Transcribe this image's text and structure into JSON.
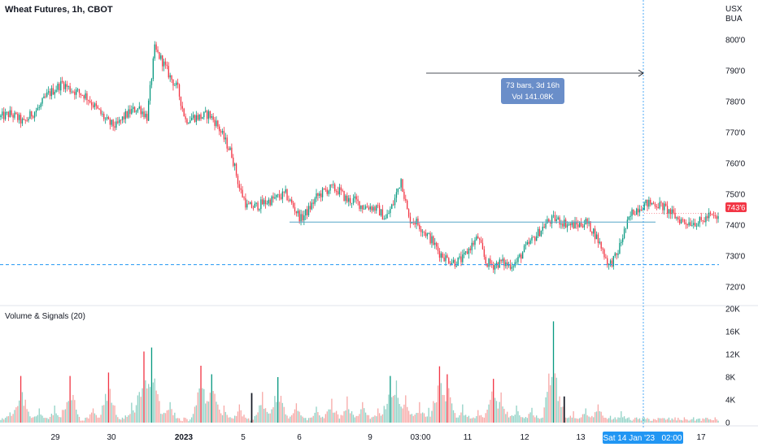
{
  "header": {
    "title": "Wheat Futures, 1h, CBOT"
  },
  "currency": {
    "line1": "USX",
    "line2": "BUA"
  },
  "colors": {
    "up": "#089981",
    "down": "#f23645",
    "up_light": "#92d2c6",
    "down_light": "#f7a9a7",
    "accent": "#2962ff",
    "hline": "#56a6c8",
    "price_tag": "#f23645",
    "date_tag": "#2196f3",
    "measure_box": "#6a8ec9"
  },
  "price_pane": {
    "ylim": [
      715,
      805
    ],
    "ticks": [
      "800'0",
      "790'0",
      "780'0",
      "770'0",
      "760'0",
      "750'0",
      "740'0",
      "730'0",
      "720'0"
    ],
    "tick_values": [
      800,
      790,
      780,
      770,
      760,
      750,
      740,
      730,
      720
    ],
    "current_price_label": "743'6",
    "current_price": 743.75,
    "horizontal_line": 741.0,
    "dashed_line": 727.2
  },
  "measure": {
    "line1": "73 bars, 3d 16h",
    "line2": "Vol 141.08K"
  },
  "volume_pane": {
    "title": "Volume & Signals (20)",
    "ylim": [
      0,
      20000
    ],
    "ticks": [
      "20K",
      "16K",
      "12K",
      "8K",
      "4K",
      "0"
    ],
    "tick_values": [
      20000,
      16000,
      12000,
      8000,
      4000,
      0
    ]
  },
  "x_axis": {
    "labels": [
      "29",
      "30",
      "2023",
      "5",
      "6",
      "9",
      "03:00",
      "11",
      "12",
      "13",
      "17"
    ],
    "crosshair_label": "Sat 14 Jan '23   02:00"
  },
  "chart_data": {
    "type": "candlestick",
    "series_name": "Wheat Futures, 1h, CBOT",
    "close_path": [
      [
        0,
        775
      ],
      [
        6,
        776
      ],
      [
        10,
        775
      ],
      [
        15,
        773
      ],
      [
        20,
        776
      ],
      [
        25,
        778
      ],
      [
        30,
        782
      ],
      [
        35,
        784
      ],
      [
        40,
        786
      ],
      [
        45,
        784
      ],
      [
        50,
        783
      ],
      [
        55,
        782
      ],
      [
        60,
        779
      ],
      [
        65,
        776
      ],
      [
        70,
        773
      ],
      [
        75,
        772
      ],
      [
        80,
        775
      ],
      [
        85,
        777
      ],
      [
        90,
        778
      ],
      [
        95,
        775
      ],
      [
        100,
        797
      ],
      [
        105,
        793
      ],
      [
        110,
        788
      ],
      [
        115,
        784
      ],
      [
        120,
        774
      ],
      [
        125,
        775
      ],
      [
        130,
        775
      ],
      [
        135,
        776
      ],
      [
        140,
        773
      ],
      [
        145,
        768
      ],
      [
        150,
        763
      ],
      [
        155,
        752
      ],
      [
        160,
        746
      ],
      [
        165,
        746
      ],
      [
        170,
        747
      ],
      [
        175,
        748
      ],
      [
        180,
        749
      ],
      [
        185,
        750
      ],
      [
        190,
        746
      ],
      [
        195,
        742
      ],
      [
        200,
        745
      ],
      [
        205,
        749
      ],
      [
        210,
        751
      ],
      [
        215,
        752
      ],
      [
        220,
        751
      ],
      [
        225,
        748
      ],
      [
        230,
        748
      ],
      [
        235,
        746
      ],
      [
        240,
        746
      ],
      [
        245,
        745
      ],
      [
        250,
        742
      ],
      [
        255,
        747
      ],
      [
        260,
        755
      ],
      [
        265,
        742
      ],
      [
        270,
        741
      ],
      [
        275,
        738
      ],
      [
        280,
        735
      ],
      [
        285,
        731
      ],
      [
        290,
        729
      ],
      [
        295,
        728
      ],
      [
        300,
        729
      ],
      [
        305,
        733
      ],
      [
        310,
        736
      ],
      [
        315,
        728
      ],
      [
        320,
        727
      ],
      [
        325,
        728
      ],
      [
        330,
        727
      ],
      [
        335,
        728
      ],
      [
        340,
        732
      ],
      [
        345,
        735
      ],
      [
        350,
        738
      ],
      [
        355,
        741
      ],
      [
        360,
        742
      ],
      [
        365,
        741
      ],
      [
        370,
        740
      ],
      [
        375,
        740
      ],
      [
        380,
        741
      ],
      [
        385,
        738
      ],
      [
        390,
        733
      ],
      [
        395,
        727
      ],
      [
        400,
        730
      ],
      [
        405,
        738
      ],
      [
        410,
        744
      ],
      [
        415,
        746
      ],
      [
        420,
        747
      ],
      [
        425,
        747
      ],
      [
        430,
        746
      ],
      [
        435,
        744
      ],
      [
        440,
        742
      ],
      [
        445,
        741
      ],
      [
        450,
        741
      ],
      [
        455,
        741
      ],
      [
        460,
        743
      ],
      [
        466,
        742
      ]
    ],
    "volume_spikes": [
      [
        6,
        1800
      ],
      [
        13,
        8200
      ],
      [
        25,
        2500
      ],
      [
        35,
        3000
      ],
      [
        45,
        8200
      ],
      [
        60,
        2500
      ],
      [
        70,
        8800
      ],
      [
        85,
        3500
      ],
      [
        93,
        12500
      ],
      [
        98,
        13200
      ],
      [
        103,
        3800
      ],
      [
        110,
        3600
      ],
      [
        130,
        10000
      ],
      [
        137,
        8500
      ],
      [
        145,
        3000
      ],
      [
        155,
        3200
      ],
      [
        170,
        5400
      ],
      [
        180,
        8000
      ],
      [
        192,
        3400
      ],
      [
        205,
        2800
      ],
      [
        215,
        4200
      ],
      [
        225,
        4600
      ],
      [
        235,
        3600
      ],
      [
        245,
        2500
      ],
      [
        253,
        8200
      ],
      [
        257,
        7400
      ],
      [
        263,
        4800
      ],
      [
        272,
        3600
      ],
      [
        278,
        2600
      ],
      [
        285,
        9900
      ],
      [
        290,
        8500
      ],
      [
        300,
        3200
      ],
      [
        310,
        2200
      ],
      [
        320,
        7700
      ],
      [
        325,
        5300
      ],
      [
        335,
        3000
      ],
      [
        345,
        2600
      ],
      [
        355,
        2900
      ],
      [
        359,
        17800
      ],
      [
        362,
        3800
      ],
      [
        372,
        2000
      ],
      [
        380,
        2500
      ],
      [
        388,
        3200
      ],
      [
        396,
        1200
      ],
      [
        403,
        2000
      ]
    ],
    "ylim": [
      715,
      805
    ],
    "volume_ylim": [
      0,
      20000
    ]
  }
}
